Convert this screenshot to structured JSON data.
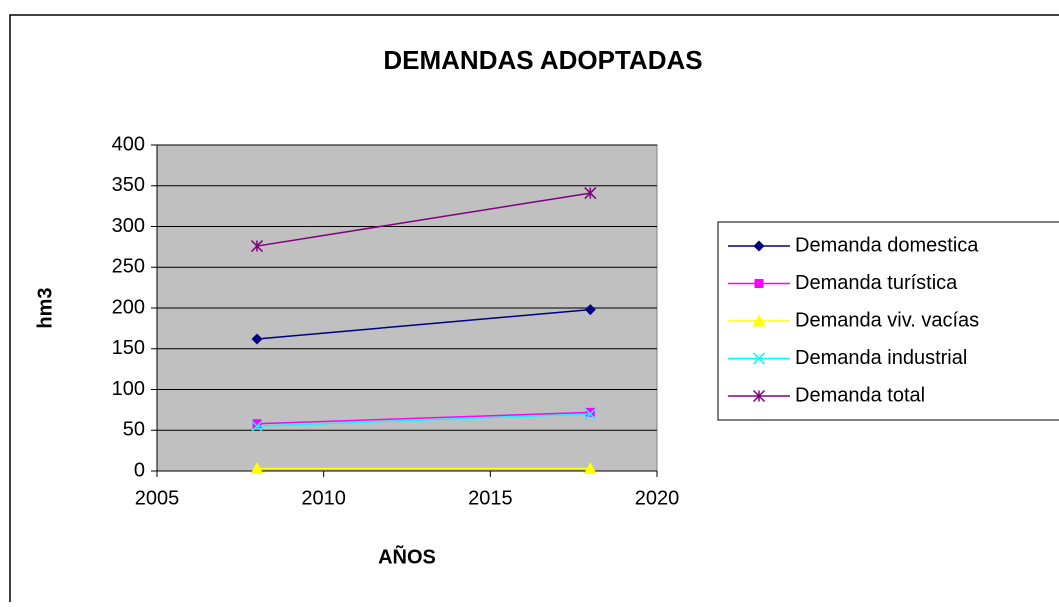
{
  "chart_data": {
    "type": "line",
    "title": "DEMANDAS ADOPTADAS",
    "x_label": "AÑOS",
    "y_label": "hm3",
    "x": [
      2008,
      2018
    ],
    "series": [
      {
        "name": "Demanda domestica",
        "color": "#000080",
        "marker": "diamond",
        "values": [
          162,
          198
        ]
      },
      {
        "name": "Demanda turística",
        "color": "#ff00ff",
        "marker": "square",
        "values": [
          58,
          72
        ]
      },
      {
        "name": "Demanda viv. vacías",
        "color": "#ffff00",
        "marker": "triangle",
        "values": [
          3,
          3
        ]
      },
      {
        "name": "Demanda industrial",
        "color": "#00ffff",
        "marker": "x",
        "values": [
          55,
          70
        ]
      },
      {
        "name": "Demanda total",
        "color": "#800080",
        "marker": "asterisk",
        "values": [
          276,
          341
        ]
      }
    ],
    "xlim": [
      2005,
      2020
    ],
    "xticks": [
      2005,
      2010,
      2015,
      2020
    ],
    "ylim": [
      0,
      400
    ],
    "yticks": [
      0,
      50,
      100,
      150,
      200,
      250,
      300,
      350,
      400
    ],
    "grid": true,
    "legend": "right"
  }
}
